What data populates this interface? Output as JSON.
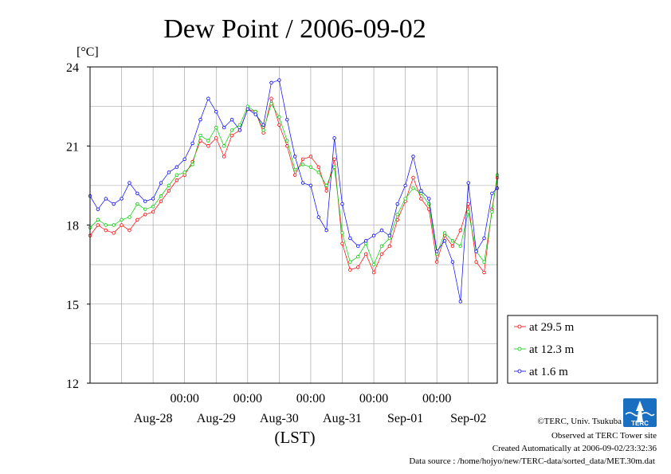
{
  "chart_data": {
    "type": "line",
    "title": "Dew Point / 2006-09-02",
    "ylabel": "[°C]",
    "xlabel": "(LST)",
    "ylim": [
      12,
      24
    ],
    "yticks": [
      "12",
      "15",
      "18",
      "21",
      "24"
    ],
    "xlim": [
      "2006-08-27 12:00",
      "2006-09-02 23:00"
    ],
    "time_ticks": [
      "00:00",
      "00:00",
      "00:00",
      "00:00",
      "00:00"
    ],
    "day_labels": [
      "Aug-28",
      "Aug-29",
      "Aug-30",
      "Aug-31",
      "Sep-01",
      "Sep-02"
    ],
    "grid": true,
    "legend_position": "bottom-right",
    "series": [
      {
        "name": "at 29.5 m",
        "color": "#ff0000",
        "points": [
          [
            "2006-08-27 12:00",
            17.6
          ],
          [
            "2006-08-27 15:00",
            18.0
          ],
          [
            "2006-08-27 18:00",
            17.8
          ],
          [
            "2006-08-27 21:00",
            17.7
          ],
          [
            "2006-08-28 00:00",
            18.0
          ],
          [
            "2006-08-28 03:00",
            17.8
          ],
          [
            "2006-08-28 06:00",
            18.2
          ],
          [
            "2006-08-28 09:00",
            18.4
          ],
          [
            "2006-08-28 12:00",
            18.5
          ],
          [
            "2006-08-28 15:00",
            18.9
          ],
          [
            "2006-08-28 18:00",
            19.3
          ],
          [
            "2006-08-28 21:00",
            19.7
          ],
          [
            "2006-08-29 00:00",
            19.9
          ],
          [
            "2006-08-29 03:00",
            20.4
          ],
          [
            "2006-08-29 06:00",
            21.2
          ],
          [
            "2006-08-29 09:00",
            21.0
          ],
          [
            "2006-08-29 12:00",
            21.3
          ],
          [
            "2006-08-29 15:00",
            20.6
          ],
          [
            "2006-08-29 18:00",
            21.4
          ],
          [
            "2006-08-29 21:00",
            21.6
          ],
          [
            "2006-08-30 00:00",
            22.4
          ],
          [
            "2006-08-30 03:00",
            22.3
          ],
          [
            "2006-08-30 06:00",
            21.5
          ],
          [
            "2006-08-30 09:00",
            22.8
          ],
          [
            "2006-08-30 12:00",
            21.8
          ],
          [
            "2006-08-30 15:00",
            21.0
          ],
          [
            "2006-08-30 18:00",
            19.9
          ],
          [
            "2006-08-30 21:00",
            20.5
          ],
          [
            "2006-08-31 00:00",
            20.6
          ],
          [
            "2006-08-31 03:00",
            20.2
          ],
          [
            "2006-08-31 06:00",
            19.3
          ],
          [
            "2006-08-31 09:00",
            20.5
          ],
          [
            "2006-08-31 12:00",
            17.3
          ],
          [
            "2006-08-31 15:00",
            16.3
          ],
          [
            "2006-08-31 18:00",
            16.4
          ],
          [
            "2006-08-31 21:00",
            16.9
          ],
          [
            "2006-09-01 00:00",
            16.2
          ],
          [
            "2006-09-01 03:00",
            16.9
          ],
          [
            "2006-09-01 06:00",
            17.2
          ],
          [
            "2006-09-01 09:00",
            18.2
          ],
          [
            "2006-09-01 12:00",
            18.9
          ],
          [
            "2006-09-01 15:00",
            19.8
          ],
          [
            "2006-09-01 18:00",
            19.0
          ],
          [
            "2006-09-01 21:00",
            18.6
          ],
          [
            "2006-09-02 00:00",
            16.6
          ],
          [
            "2006-09-02 03:00",
            17.6
          ],
          [
            "2006-09-02 06:00",
            17.2
          ],
          [
            "2006-09-02 09:00",
            17.8
          ],
          [
            "2006-09-02 12:00",
            18.8
          ],
          [
            "2006-09-02 15:00",
            16.6
          ],
          [
            "2006-09-02 18:00",
            16.2
          ],
          [
            "2006-09-02 21:00",
            18.6
          ],
          [
            "2006-09-02 23:00",
            19.8
          ]
        ]
      },
      {
        "name": "at 12.3 m",
        "color": "#00cc00",
        "points": [
          [
            "2006-08-27 12:00",
            17.9
          ],
          [
            "2006-08-27 15:00",
            18.2
          ],
          [
            "2006-08-27 18:00",
            18.0
          ],
          [
            "2006-08-27 21:00",
            18.0
          ],
          [
            "2006-08-28 00:00",
            18.2
          ],
          [
            "2006-08-28 03:00",
            18.3
          ],
          [
            "2006-08-28 06:00",
            18.8
          ],
          [
            "2006-08-28 09:00",
            18.6
          ],
          [
            "2006-08-28 12:00",
            18.7
          ],
          [
            "2006-08-28 15:00",
            19.1
          ],
          [
            "2006-08-28 18:00",
            19.5
          ],
          [
            "2006-08-28 21:00",
            19.9
          ],
          [
            "2006-08-29 00:00",
            20.0
          ],
          [
            "2006-08-29 03:00",
            20.3
          ],
          [
            "2006-08-29 06:00",
            21.4
          ],
          [
            "2006-08-29 09:00",
            21.2
          ],
          [
            "2006-08-29 12:00",
            21.7
          ],
          [
            "2006-08-29 15:00",
            21.0
          ],
          [
            "2006-08-29 18:00",
            21.6
          ],
          [
            "2006-08-29 21:00",
            21.8
          ],
          [
            "2006-08-30 00:00",
            22.5
          ],
          [
            "2006-08-30 03:00",
            22.3
          ],
          [
            "2006-08-30 06:00",
            21.6
          ],
          [
            "2006-08-30 09:00",
            22.6
          ],
          [
            "2006-08-30 12:00",
            22.1
          ],
          [
            "2006-08-30 15:00",
            21.2
          ],
          [
            "2006-08-30 18:00",
            20.1
          ],
          [
            "2006-08-30 21:00",
            20.3
          ],
          [
            "2006-08-31 00:00",
            20.2
          ],
          [
            "2006-08-31 03:00",
            20.0
          ],
          [
            "2006-08-31 06:00",
            19.5
          ],
          [
            "2006-08-31 09:00",
            20.2
          ],
          [
            "2006-08-31 12:00",
            17.7
          ],
          [
            "2006-08-31 15:00",
            16.6
          ],
          [
            "2006-08-31 18:00",
            16.8
          ],
          [
            "2006-08-31 21:00",
            17.3
          ],
          [
            "2006-09-01 00:00",
            16.5
          ],
          [
            "2006-09-01 03:00",
            17.2
          ],
          [
            "2006-09-01 06:00",
            17.5
          ],
          [
            "2006-09-01 09:00",
            18.4
          ],
          [
            "2006-09-01 12:00",
            19.0
          ],
          [
            "2006-09-01 15:00",
            19.4
          ],
          [
            "2006-09-01 18:00",
            19.2
          ],
          [
            "2006-09-01 21:00",
            18.8
          ],
          [
            "2006-09-02 00:00",
            16.9
          ],
          [
            "2006-09-02 03:00",
            17.7
          ],
          [
            "2006-09-02 06:00",
            17.4
          ],
          [
            "2006-09-02 09:00",
            17.2
          ],
          [
            "2006-09-02 12:00",
            18.5
          ],
          [
            "2006-09-02 15:00",
            17.0
          ],
          [
            "2006-09-02 18:00",
            16.6
          ],
          [
            "2006-09-02 21:00",
            18.5
          ],
          [
            "2006-09-02 23:00",
            19.9
          ]
        ]
      },
      {
        "name": "at 1.6 m",
        "color": "#0000ff",
        "points": [
          [
            "2006-08-27 12:00",
            19.1
          ],
          [
            "2006-08-27 15:00",
            18.6
          ],
          [
            "2006-08-27 18:00",
            19.0
          ],
          [
            "2006-08-27 21:00",
            18.8
          ],
          [
            "2006-08-28 00:00",
            19.0
          ],
          [
            "2006-08-28 03:00",
            19.6
          ],
          [
            "2006-08-28 06:00",
            19.2
          ],
          [
            "2006-08-28 09:00",
            18.9
          ],
          [
            "2006-08-28 12:00",
            19.0
          ],
          [
            "2006-08-28 15:00",
            19.6
          ],
          [
            "2006-08-28 18:00",
            20.0
          ],
          [
            "2006-08-28 21:00",
            20.2
          ],
          [
            "2006-08-29 00:00",
            20.5
          ],
          [
            "2006-08-29 03:00",
            21.1
          ],
          [
            "2006-08-29 06:00",
            22.0
          ],
          [
            "2006-08-29 09:00",
            22.8
          ],
          [
            "2006-08-29 12:00",
            22.3
          ],
          [
            "2006-08-29 15:00",
            21.7
          ],
          [
            "2006-08-29 18:00",
            22.0
          ],
          [
            "2006-08-29 21:00",
            21.6
          ],
          [
            "2006-08-30 00:00",
            22.4
          ],
          [
            "2006-08-30 03:00",
            22.2
          ],
          [
            "2006-08-30 06:00",
            21.8
          ],
          [
            "2006-08-30 09:00",
            23.4
          ],
          [
            "2006-08-30 12:00",
            23.5
          ],
          [
            "2006-08-30 15:00",
            22.0
          ],
          [
            "2006-08-30 18:00",
            20.6
          ],
          [
            "2006-08-30 21:00",
            19.6
          ],
          [
            "2006-08-31 00:00",
            19.5
          ],
          [
            "2006-08-31 03:00",
            18.3
          ],
          [
            "2006-08-31 06:00",
            17.8
          ],
          [
            "2006-08-31 09:00",
            21.3
          ],
          [
            "2006-08-31 12:00",
            18.8
          ],
          [
            "2006-08-31 15:00",
            17.5
          ],
          [
            "2006-08-31 18:00",
            17.2
          ],
          [
            "2006-08-31 21:00",
            17.4
          ],
          [
            "2006-09-01 00:00",
            17.6
          ],
          [
            "2006-09-01 03:00",
            17.8
          ],
          [
            "2006-09-01 06:00",
            17.6
          ],
          [
            "2006-09-01 09:00",
            18.8
          ],
          [
            "2006-09-01 12:00",
            19.5
          ],
          [
            "2006-09-01 15:00",
            20.6
          ],
          [
            "2006-09-01 18:00",
            19.3
          ],
          [
            "2006-09-01 21:00",
            19.0
          ],
          [
            "2006-09-02 00:00",
            17.0
          ],
          [
            "2006-09-02 03:00",
            17.4
          ],
          [
            "2006-09-02 06:00",
            16.6
          ],
          [
            "2006-09-02 09:00",
            15.1
          ],
          [
            "2006-09-02 12:00",
            19.6
          ],
          [
            "2006-09-02 15:00",
            17.0
          ],
          [
            "2006-09-02 18:00",
            17.5
          ],
          [
            "2006-09-02 21:00",
            19.2
          ],
          [
            "2006-09-02 23:00",
            19.4
          ]
        ]
      }
    ]
  },
  "footer": {
    "copyright": "©TERC, Univ. Tsukuba",
    "observed": "Observed at TERC Tower site",
    "created": "Created Automatically at 2006-09-02/23:32:36",
    "source": "Data source : /home/hojyo/new/TERC-data/sorted_data/MET.30m.dat"
  },
  "logo": {
    "text": "TERC",
    "color": "#1a6fc0"
  }
}
